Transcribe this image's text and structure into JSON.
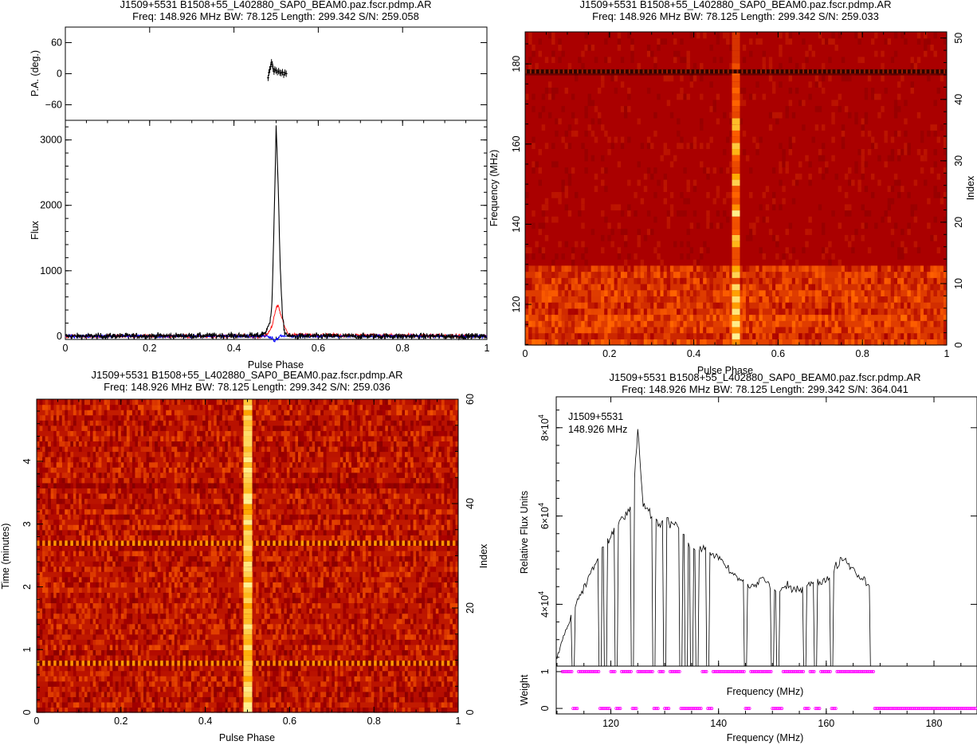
{
  "chart_data": [
    {
      "id": "profile",
      "type": "line",
      "title": "J1509+5531  B1508+55_L402880_SAP0_BEAM0.paz.fscr.pdmp.AR",
      "subtitle": "Freq:  148.926  MHz  BW:  78.125  Length:  299.342  S/N:  259.058",
      "xlabel": "Pulse Phase",
      "pa_ylabel": "P.A. (deg.)",
      "flux_ylabel": "Flux",
      "xlim": [
        0,
        1
      ],
      "pa_ylim": [
        -90,
        90
      ],
      "flux_ylim": [
        -50,
        3300
      ],
      "x_ticks": [
        "0",
        "0.2",
        "0.4",
        "0.6",
        "0.8",
        "1"
      ],
      "pa_ticks": [
        "60",
        "0",
        "−60"
      ],
      "flux_ticks": [
        "0",
        "1000",
        "2000",
        "3000"
      ],
      "series": [
        {
          "color": "#000000",
          "x": [
            0.0,
            0.46,
            0.475,
            0.48,
            0.485,
            0.49,
            0.495,
            0.5,
            0.505,
            0.51,
            0.515,
            0.52,
            0.53,
            1.0
          ],
          "values": [
            0,
            10,
            60,
            120,
            200,
            500,
            1700,
            3200,
            2300,
            1000,
            300,
            60,
            0,
            0
          ]
        },
        {
          "color": "#ff0000",
          "x": [
            0.0,
            0.47,
            0.48,
            0.49,
            0.5,
            0.505,
            0.51,
            0.52,
            0.53,
            1.0
          ],
          "values": [
            0,
            0,
            40,
            150,
            420,
            470,
            350,
            150,
            20,
            0
          ]
        },
        {
          "color": "#0000ff",
          "x": [
            0.0,
            0.48,
            0.49,
            0.495,
            0.5,
            0.505,
            0.51,
            1.0
          ],
          "values": [
            0,
            0,
            -20,
            -70,
            -60,
            -30,
            0,
            0
          ]
        }
      ],
      "pa_points": {
        "x": [
          0.481,
          0.483,
          0.485,
          0.487,
          0.489,
          0.491,
          0.493,
          0.495,
          0.497,
          0.5,
          0.503,
          0.506,
          0.509,
          0.512,
          0.515,
          0.518,
          0.521,
          0.524
        ],
        "values": [
          -8,
          2,
          8,
          14,
          22,
          18,
          10,
          4,
          8,
          6,
          3,
          5,
          2,
          1,
          3,
          -2,
          2,
          0
        ]
      }
    },
    {
      "id": "freq-phase",
      "type": "heatmap",
      "title": "J1509+5531  B1508+55_L402880_SAP0_BEAM0.paz.fscr.pdmp.AR",
      "subtitle": "Freq:  148.926  MHz  BW:  78.125  Length:  299.342  S/N:  259.033",
      "xlabel": "Pulse Phase",
      "ylabel": "Frequency (MHz)",
      "y2label": "Index",
      "xlim": [
        0,
        1
      ],
      "ylim": [
        109.86,
        187.99
      ],
      "y2lim": [
        0,
        51
      ],
      "x_ticks": [
        "0",
        "0.2",
        "0.4",
        "0.6",
        "0.8",
        "1"
      ],
      "y_ticks": [
        "120",
        "140",
        "160",
        "180"
      ],
      "y2_ticks": [
        "0",
        "10",
        "20",
        "30",
        "40",
        "50"
      ],
      "pulse_phase": 0.5,
      "bright_frequencies_mhz": [
        112,
        115,
        118,
        121,
        124,
        128,
        136,
        143,
        151,
        159,
        165
      ]
    },
    {
      "id": "time-phase",
      "type": "heatmap",
      "title": "J1509+5531  B1508+55_L402880_SAP0_BEAM0.paz.fscr.pdmp.AR",
      "subtitle": "Freq:  148.926  MHz  BW:  78.125  Length:  299.342  S/N:  259.036",
      "xlabel": "Pulse Phase",
      "ylabel": "Time (minutes)",
      "y2label": "Index",
      "xlim": [
        0,
        1
      ],
      "ylim": [
        0,
        4.99
      ],
      "y2lim": [
        0,
        60
      ],
      "x_ticks": [
        "0",
        "0.2",
        "0.4",
        "0.6",
        "0.8",
        "1"
      ],
      "y_ticks": [
        "0",
        "1",
        "2",
        "3",
        "4"
      ],
      "y2_ticks": [
        "0",
        "20",
        "40",
        "60"
      ],
      "pulse_phase": 0.5
    },
    {
      "id": "bandpass",
      "type": "line",
      "title": "J1509+5531  B1508+55_L402880_SAP0_BEAM0.paz.fscr.pdmp.AR",
      "subtitle": "Freq:  148.926  MHz  BW:  78.125  Length:  299.342  S/N:  364.041",
      "annotation": [
        "J1509+5531",
        "148.926 MHz"
      ],
      "xlabel": "Frequency (MHz)",
      "inner_xlabel": "Frequency (MHz)",
      "ylabel": "Relative Flux Units",
      "weight_ylabel": "Weight",
      "xlim": [
        109.86,
        187.99
      ],
      "ylim": [
        26000,
        87000
      ],
      "weight_ylim": [
        -0.15,
        1.15
      ],
      "x_ticks": [
        "120",
        "140",
        "160",
        "180"
      ],
      "y_ticks_base": [
        "4×10",
        "6×10",
        "8×10"
      ],
      "y_ticks_values": [
        40000,
        60000,
        80000
      ],
      "y_ticks_exp": "4",
      "weight_ticks": [
        "0",
        "1"
      ],
      "x": [
        110,
        111,
        112,
        113,
        114,
        115,
        116,
        117,
        118,
        119,
        120,
        121,
        122,
        123,
        124,
        125,
        126,
        127,
        128,
        129,
        130,
        131,
        132,
        133,
        134,
        135,
        136,
        137,
        138,
        139,
        140,
        141,
        142,
        143,
        144,
        145,
        146,
        147,
        148,
        149,
        150,
        151,
        152,
        153,
        154,
        155,
        156,
        157,
        158,
        159,
        160,
        161,
        162,
        163,
        164,
        165,
        166,
        167,
        168
      ],
      "values": [
        28000,
        32000,
        35000,
        38500,
        41000,
        43500,
        46500,
        49000,
        51500,
        53500,
        55000,
        57500,
        59500,
        60500,
        61500,
        80000,
        62000,
        61000,
        59500,
        58000,
        59500,
        58500,
        58500,
        57000,
        54000,
        52500,
        53000,
        52500,
        52000,
        51500,
        50500,
        49000,
        47500,
        46500,
        45500,
        44500,
        44000,
        44500,
        46000,
        45000,
        43500,
        43000,
        43500,
        44000,
        43000,
        43500,
        44500,
        45000,
        45500,
        44500,
        45500,
        47000,
        49000,
        50500,
        49500,
        48000,
        46500,
        45500,
        44500
      ],
      "weights_x": [
        111,
        112,
        113,
        114,
        115,
        116,
        117,
        118,
        119,
        120,
        121,
        122,
        123,
        124,
        125,
        126,
        127,
        128,
        129,
        130,
        131,
        132,
        133,
        134,
        135,
        136,
        137,
        138,
        139,
        140,
        141,
        142,
        143,
        144,
        145,
        146,
        147,
        148,
        149,
        150,
        151,
        152,
        153,
        154,
        155,
        156,
        157,
        158,
        159,
        160,
        161,
        162,
        163,
        164,
        165,
        166,
        167,
        168,
        169,
        170,
        171,
        172,
        173,
        174,
        175,
        176,
        177,
        178,
        179,
        180,
        181,
        182,
        183,
        184,
        185,
        186,
        187
      ],
      "weights": [
        1,
        1,
        0,
        1,
        1,
        1,
        1,
        0,
        0,
        1,
        0,
        1,
        1,
        0,
        1,
        1,
        1,
        0,
        1,
        0,
        1,
        1,
        0,
        0,
        0,
        0,
        1,
        0,
        1,
        1,
        1,
        1,
        1,
        1,
        0,
        1,
        1,
        1,
        1,
        0,
        0,
        1,
        1,
        1,
        1,
        0,
        1,
        0,
        1,
        1,
        0,
        1,
        1,
        1,
        1,
        1,
        1,
        1,
        0,
        0,
        0,
        0,
        0,
        0,
        0,
        0,
        0,
        0,
        0,
        0,
        0,
        0,
        0,
        0,
        0,
        0,
        0
      ],
      "weight_color": "#ff00ff"
    }
  ]
}
